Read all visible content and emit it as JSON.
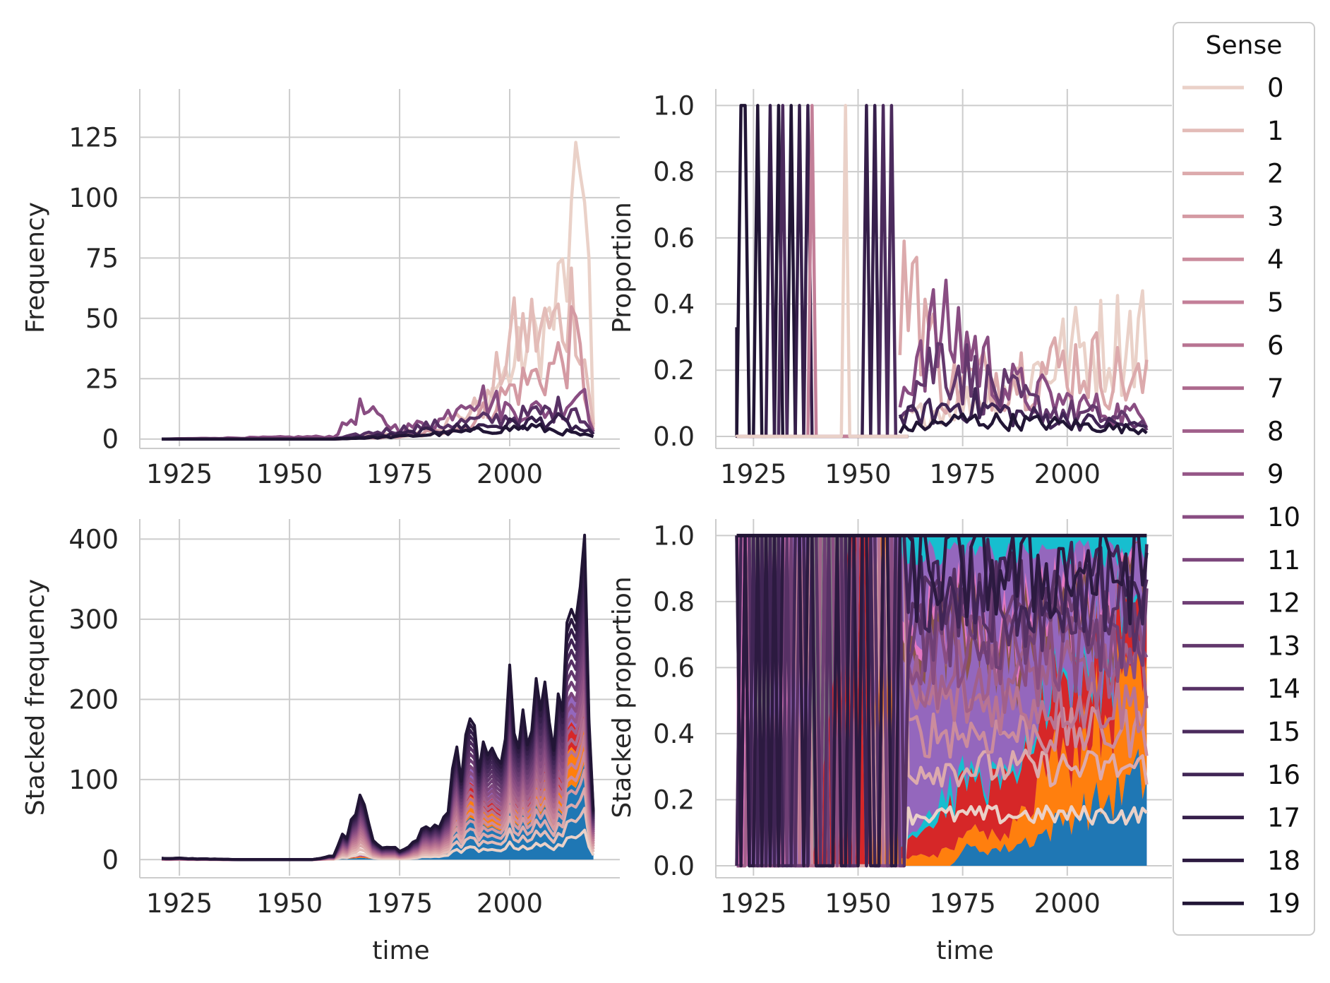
{
  "chart_data": [
    {
      "type": "line",
      "panel": "top-left",
      "ylabel": "Frequency",
      "xlim": [
        1916,
        2025
      ],
      "ylim": [
        -3,
        145
      ],
      "xticks": [
        "1925",
        "1950",
        "1975",
        "2000"
      ],
      "yticks": [
        "0",
        "25",
        "50",
        "75",
        "100",
        "125"
      ],
      "grid": true,
      "series_note_range": [
        1921,
        2019
      ],
      "series": [
        {
          "name": "0",
          "values_anchor": [
            [
              1921,
              0
            ],
            [
              1960,
              0
            ],
            [
              1975,
              1
            ],
            [
              1985,
              3
            ],
            [
              1990,
              8
            ],
            [
              1995,
              18
            ],
            [
              2000,
              28
            ],
            [
              2005,
              40
            ],
            [
              2010,
              50
            ],
            [
              2015,
              85
            ],
            [
              2017,
              136
            ],
            [
              2019,
              5
            ]
          ]
        },
        {
          "name": "1",
          "values_anchor": [
            [
              1921,
              0
            ],
            [
              1960,
              0
            ],
            [
              1975,
              2
            ],
            [
              1985,
              6
            ],
            [
              1995,
              15
            ],
            [
              2000,
              40
            ],
            [
              2005,
              45
            ],
            [
              2010,
              45
            ],
            [
              2015,
              60
            ],
            [
              2019,
              6
            ]
          ]
        },
        {
          "name": "3",
          "values_anchor": [
            [
              1921,
              0
            ],
            [
              1960,
              0
            ],
            [
              1975,
              1
            ],
            [
              1990,
              5
            ],
            [
              2000,
              20
            ],
            [
              2005,
              25
            ],
            [
              2010,
              30
            ],
            [
              2015,
              40
            ],
            [
              2019,
              4
            ]
          ]
        },
        {
          "name": "10",
          "values_anchor": [
            [
              1921,
              0
            ],
            [
              1960,
              1
            ],
            [
              1966,
              12
            ],
            [
              1975,
              4
            ],
            [
              1985,
              8
            ],
            [
              1990,
              20
            ],
            [
              2000,
              12
            ],
            [
              2010,
              12
            ],
            [
              2017,
              22
            ],
            [
              2019,
              3
            ]
          ]
        },
        {
          "name": "14",
          "values_anchor": [
            [
              1921,
              0
            ],
            [
              1960,
              0
            ],
            [
              1970,
              3
            ],
            [
              1985,
              6
            ],
            [
              1995,
              8
            ],
            [
              2005,
              10
            ],
            [
              2015,
              14
            ],
            [
              2019,
              2
            ]
          ]
        },
        {
          "name": "17",
          "values_anchor": [
            [
              1921,
              0
            ],
            [
              1960,
              0
            ],
            [
              1975,
              2
            ],
            [
              1990,
              5
            ],
            [
              2000,
              6
            ],
            [
              2010,
              8
            ],
            [
              2019,
              2
            ]
          ]
        },
        {
          "name": "19",
          "values_anchor": [
            [
              1921,
              0
            ],
            [
              1960,
              0
            ],
            [
              1975,
              1
            ],
            [
              1990,
              3
            ],
            [
              2005,
              5
            ],
            [
              2019,
              1
            ]
          ]
        }
      ]
    },
    {
      "type": "line",
      "panel": "top-right",
      "ylabel": "Proportion",
      "xlim": [
        1916,
        2025
      ],
      "ylim": [
        -0.03,
        1.05
      ],
      "xticks": [
        "1925",
        "1950",
        "1975",
        "2000"
      ],
      "yticks": [
        "0.0",
        "0.2",
        "0.4",
        "0.6",
        "0.8",
        "1.0"
      ],
      "grid": true
    },
    {
      "type": "area",
      "panel": "bottom-left",
      "xlabel": "time",
      "ylabel": "Stacked frequency",
      "xlim": [
        1916,
        2025
      ],
      "ylim": [
        -20,
        425
      ],
      "xticks": [
        "1925",
        "1950",
        "1975",
        "2000"
      ],
      "yticks": [
        "0",
        "100",
        "200",
        "300",
        "400"
      ],
      "grid": true,
      "total_anchor": [
        [
          1921,
          2
        ],
        [
          1930,
          1
        ],
        [
          1940,
          0
        ],
        [
          1955,
          0
        ],
        [
          1960,
          5
        ],
        [
          1966,
          68
        ],
        [
          1970,
          20
        ],
        [
          1975,
          10
        ],
        [
          1980,
          30
        ],
        [
          1985,
          55
        ],
        [
          1990,
          150
        ],
        [
          1995,
          110
        ],
        [
          2000,
          190
        ],
        [
          2005,
          180
        ],
        [
          2010,
          190
        ],
        [
          2015,
          260
        ],
        [
          2017,
          405
        ],
        [
          2019,
          60
        ]
      ]
    },
    {
      "type": "area",
      "panel": "bottom-right",
      "xlabel": "time",
      "ylabel": "Stacked proportion",
      "xlim": [
        1916,
        2025
      ],
      "ylim": [
        -0.03,
        1.05
      ],
      "xticks": [
        "1925",
        "1950",
        "1975",
        "2000"
      ],
      "yticks": [
        "0.0",
        "0.2",
        "0.4",
        "0.6",
        "0.8",
        "1.0"
      ],
      "grid": true
    }
  ],
  "legend": {
    "title": "Sense",
    "placement": "right",
    "entries": [
      "0",
      "1",
      "2",
      "3",
      "4",
      "5",
      "6",
      "7",
      "8",
      "9",
      "10",
      "11",
      "12",
      "13",
      "14",
      "15",
      "16",
      "17",
      "18",
      "19"
    ],
    "colors": [
      "#ead1c8",
      "#e3bcb8",
      "#dcaaac",
      "#d49aa3",
      "#cb8c9d",
      "#c37f98",
      "#b87492",
      "#ad6a8e",
      "#a1608b",
      "#955687",
      "#894d82",
      "#7c467c",
      "#6f3f75",
      "#63386d",
      "#573165",
      "#4b2b5d",
      "#402555",
      "#361f4b",
      "#2c1a40",
      "#211535"
    ]
  },
  "area_colors": {
    "blue": "#1f77b4",
    "orange": "#ff7f0e",
    "red": "#d62728",
    "purple": "#9467bd",
    "gray": "#7f7f7f",
    "pink": "#e377c2",
    "brown": "#8c564b",
    "cyan": "#17becf",
    "green": "#2ca02c"
  }
}
